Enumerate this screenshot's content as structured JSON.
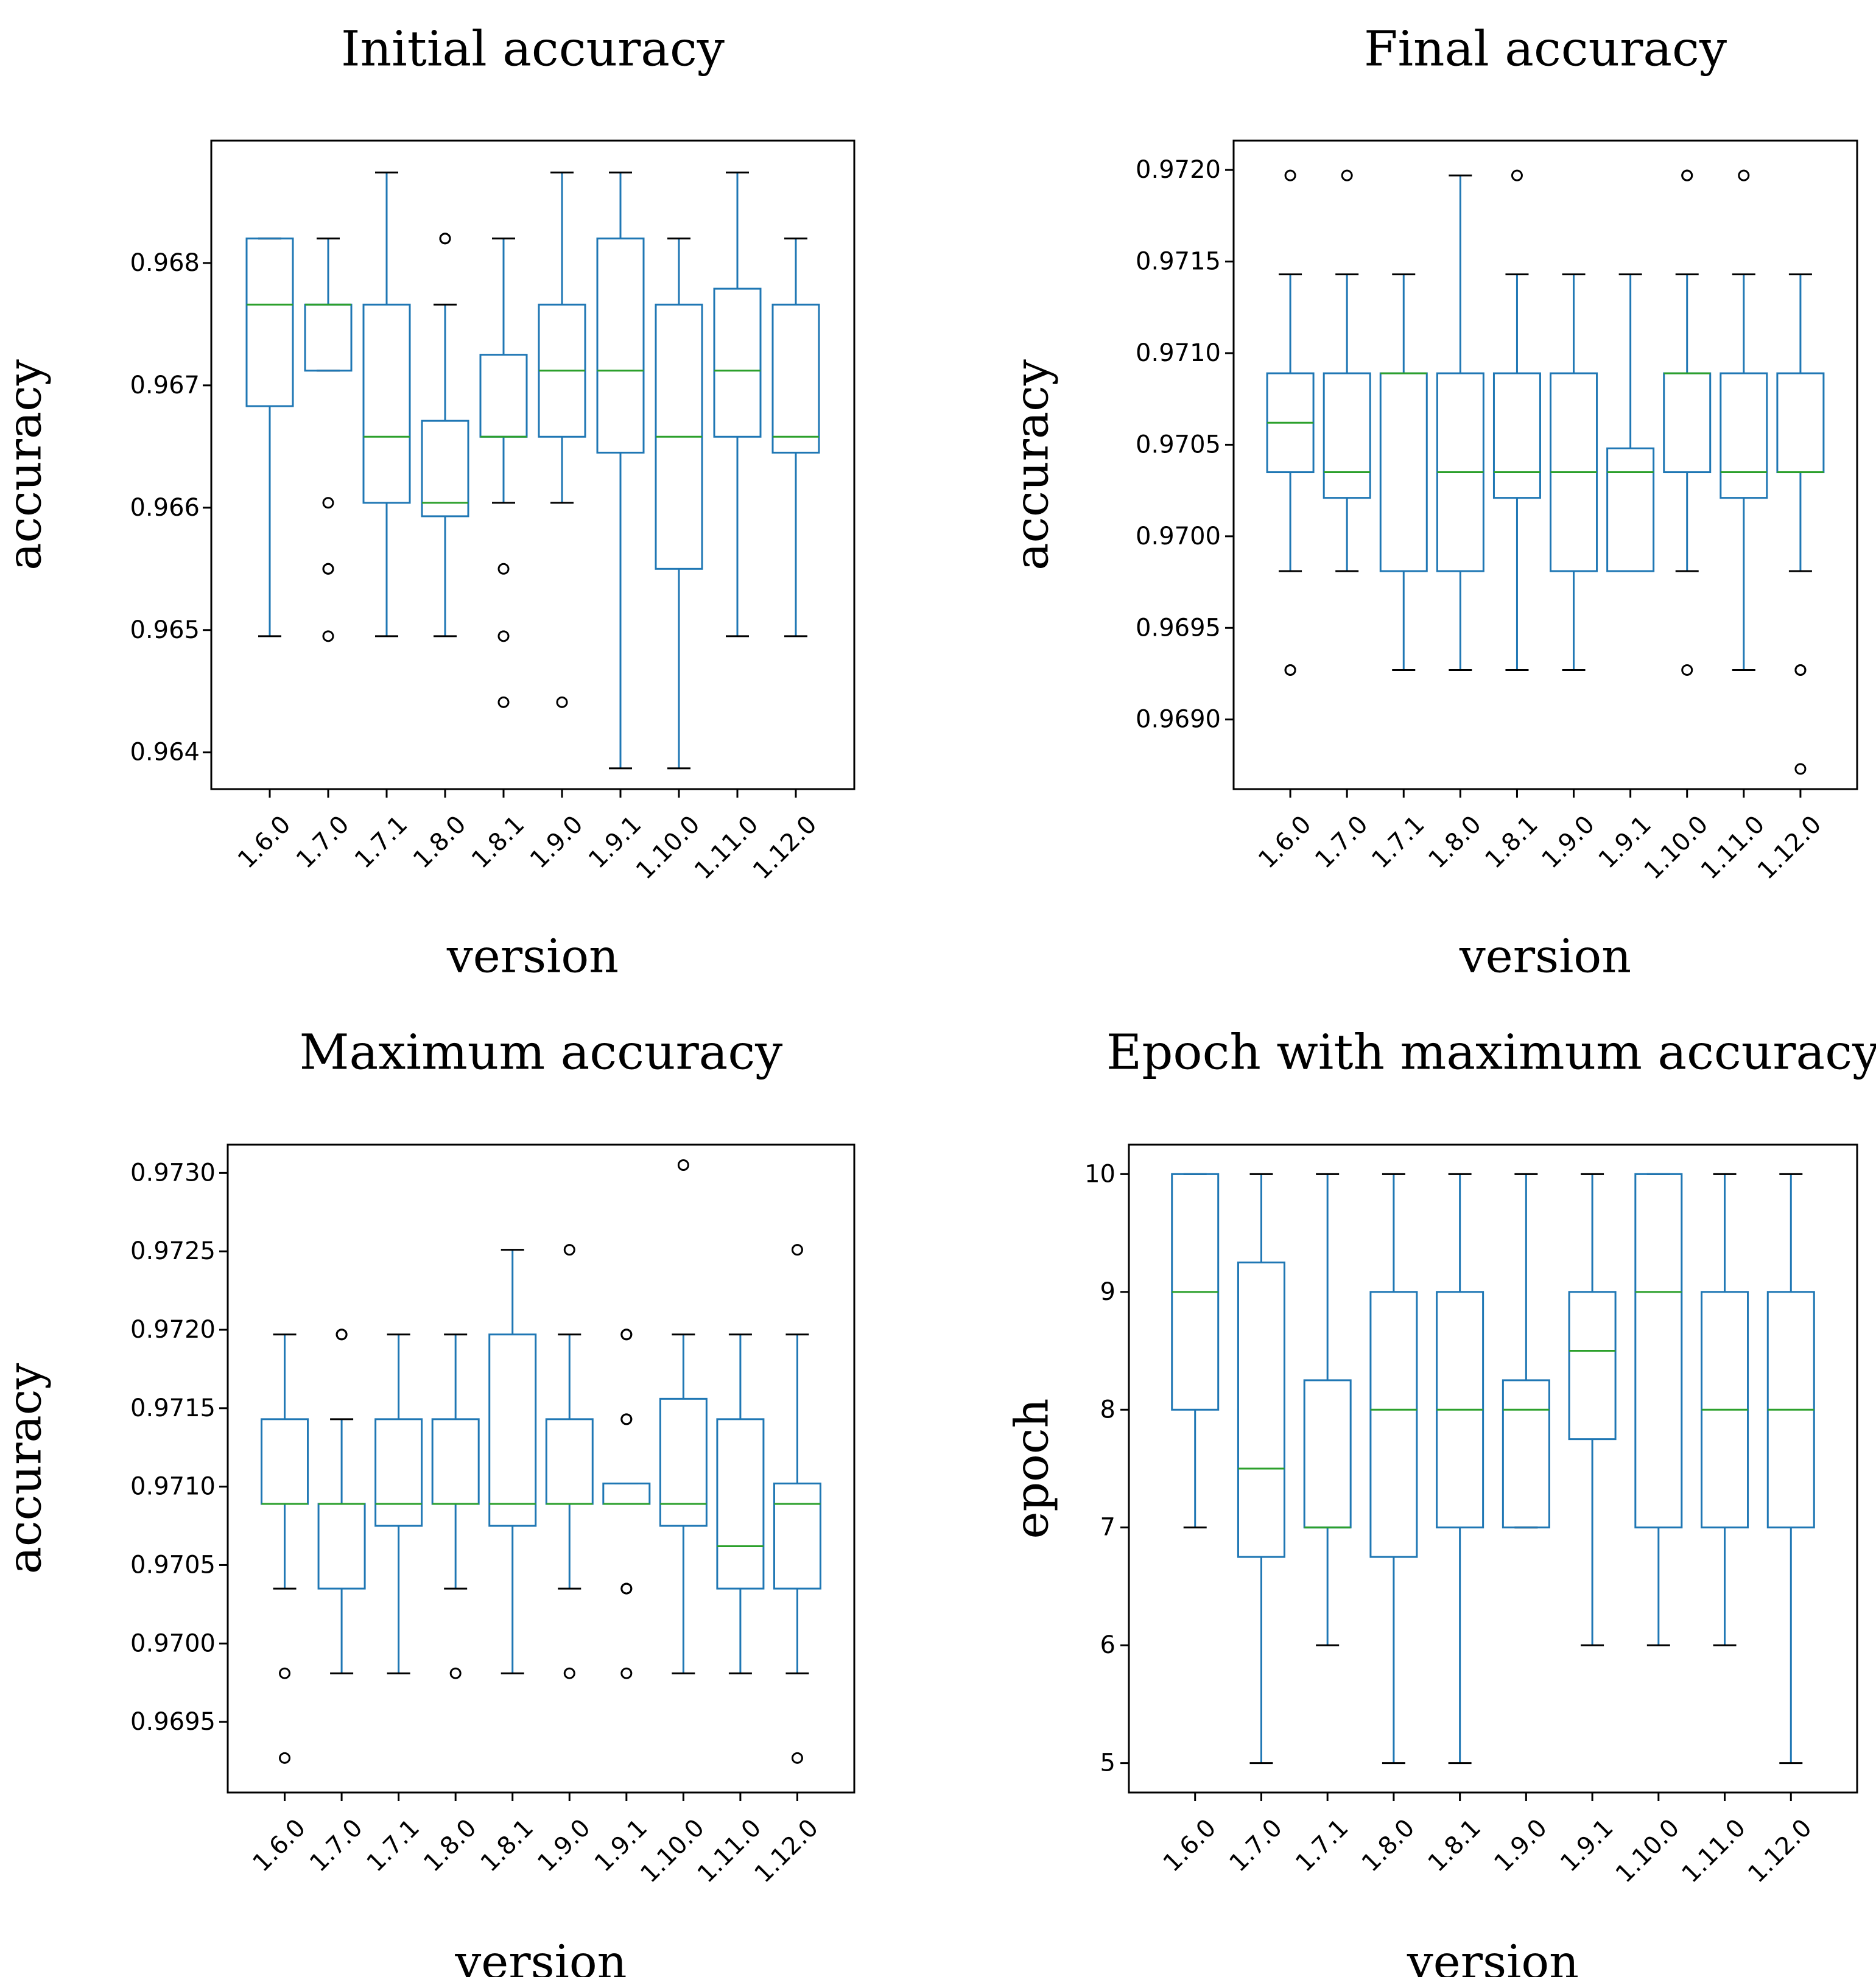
{
  "chart_data": [
    {
      "type": "box",
      "title": "Initial accuracy",
      "xlabel": "version",
      "ylabel": "accuracy",
      "categories": [
        "1.6.0",
        "1.7.0",
        "1.7.1",
        "1.8.0",
        "1.8.1",
        "1.9.0",
        "1.9.1",
        "1.10.0",
        "1.11.0",
        "1.12.0"
      ],
      "ylim": [
        0.9637,
        0.969
      ],
      "yticks": [
        0.964,
        0.965,
        0.966,
        0.967,
        0.968
      ],
      "ytick_labels": [
        "0.964",
        "0.965",
        "0.966",
        "0.967",
        "0.968"
      ],
      "boxes": [
        {
          "whislo": 0.96495,
          "q1": 0.96683,
          "med": 0.96766,
          "q3": 0.9682,
          "whishi": 0.9682,
          "fliers": []
        },
        {
          "whislo": 0.96712,
          "q1": 0.96712,
          "med": 0.96766,
          "q3": 0.96766,
          "whishi": 0.9682,
          "fliers": [
            0.96604,
            0.9655,
            0.9655,
            0.96495
          ]
        },
        {
          "whislo": 0.96495,
          "q1": 0.96604,
          "med": 0.96658,
          "q3": 0.96766,
          "whishi": 0.96874,
          "fliers": []
        },
        {
          "whislo": 0.96495,
          "q1": 0.96593,
          "med": 0.96604,
          "q3": 0.96671,
          "whishi": 0.96766,
          "fliers": [
            0.9682,
            0.9682
          ]
        },
        {
          "whislo": 0.96604,
          "q1": 0.96658,
          "med": 0.96658,
          "q3": 0.96725,
          "whishi": 0.9682,
          "fliers": [
            0.9655,
            0.96495,
            0.96441
          ]
        },
        {
          "whislo": 0.96604,
          "q1": 0.96658,
          "med": 0.96712,
          "q3": 0.96766,
          "whishi": 0.96874,
          "fliers": [
            0.96441
          ]
        },
        {
          "whislo": 0.96387,
          "q1": 0.96645,
          "med": 0.96712,
          "q3": 0.9682,
          "whishi": 0.96874,
          "fliers": []
        },
        {
          "whislo": 0.96387,
          "q1": 0.9655,
          "med": 0.96658,
          "q3": 0.96766,
          "whishi": 0.9682,
          "fliers": []
        },
        {
          "whislo": 0.96495,
          "q1": 0.96658,
          "med": 0.96712,
          "q3": 0.96779,
          "whishi": 0.96874,
          "fliers": []
        },
        {
          "whislo": 0.96495,
          "q1": 0.96645,
          "med": 0.96658,
          "q3": 0.96766,
          "whishi": 0.9682,
          "fliers": []
        }
      ]
    },
    {
      "type": "box",
      "title": "Final accuracy",
      "xlabel": "version",
      "ylabel": "accuracy",
      "categories": [
        "1.6.0",
        "1.7.0",
        "1.7.1",
        "1.8.0",
        "1.8.1",
        "1.9.0",
        "1.9.1",
        "1.10.0",
        "1.11.0",
        "1.12.0"
      ],
      "ylim": [
        0.96862,
        0.97216
      ],
      "yticks": [
        0.969,
        0.9695,
        0.97,
        0.9705,
        0.971,
        0.9715,
        0.972
      ],
      "ytick_labels": [
        "0.9690",
        "0.9695",
        "0.9700",
        "0.9705",
        "0.9710",
        "0.9715",
        "0.9720"
      ],
      "boxes": [
        {
          "whislo": 0.96981,
          "q1": 0.97035,
          "med": 0.97062,
          "q3": 0.97089,
          "whishi": 0.97143,
          "fliers": [
            0.97197,
            0.96927,
            0.96927
          ]
        },
        {
          "whislo": 0.96981,
          "q1": 0.97021,
          "med": 0.97035,
          "q3": 0.97089,
          "whishi": 0.97143,
          "fliers": [
            0.97197
          ]
        },
        {
          "whislo": 0.96927,
          "q1": 0.96981,
          "med": 0.97089,
          "q3": 0.97089,
          "whishi": 0.97143,
          "fliers": []
        },
        {
          "whislo": 0.96927,
          "q1": 0.96981,
          "med": 0.97035,
          "q3": 0.97089,
          "whishi": 0.97197,
          "fliers": []
        },
        {
          "whislo": 0.96927,
          "q1": 0.97021,
          "med": 0.97035,
          "q3": 0.97089,
          "whishi": 0.97143,
          "fliers": [
            0.97197
          ]
        },
        {
          "whislo": 0.96927,
          "q1": 0.96981,
          "med": 0.97035,
          "q3": 0.97089,
          "whishi": 0.97143,
          "fliers": []
        },
        {
          "whislo": 0.96981,
          "q1": 0.96981,
          "med": 0.97035,
          "q3": 0.97048,
          "whishi": 0.97143,
          "fliers": []
        },
        {
          "whislo": 0.96981,
          "q1": 0.97035,
          "med": 0.97089,
          "q3": 0.97089,
          "whishi": 0.97143,
          "fliers": [
            0.97197,
            0.97197,
            0.96927
          ]
        },
        {
          "whislo": 0.96927,
          "q1": 0.97021,
          "med": 0.97035,
          "q3": 0.97089,
          "whishi": 0.97143,
          "fliers": [
            0.97197
          ]
        },
        {
          "whislo": 0.96981,
          "q1": 0.97035,
          "med": 0.97035,
          "q3": 0.97089,
          "whishi": 0.97143,
          "fliers": [
            0.96927,
            0.96927,
            0.96873
          ]
        }
      ]
    },
    {
      "type": "box",
      "title": "Maximum accuracy",
      "xlabel": "version",
      "ylabel": "accuracy",
      "categories": [
        "1.6.0",
        "1.7.0",
        "1.7.1",
        "1.8.0",
        "1.8.1",
        "1.9.0",
        "1.9.1",
        "1.10.0",
        "1.11.0",
        "1.12.0"
      ],
      "ylim": [
        0.96905,
        0.97318
      ],
      "yticks": [
        0.9695,
        0.97,
        0.9705,
        0.971,
        0.9715,
        0.972,
        0.9725,
        0.973
      ],
      "ytick_labels": [
        "0.9695",
        "0.9700",
        "0.9705",
        "0.9710",
        "0.9715",
        "0.9720",
        "0.9725",
        "0.9730"
      ],
      "boxes": [
        {
          "whislo": 0.97035,
          "q1": 0.97089,
          "med": 0.97089,
          "q3": 0.97143,
          "whishi": 0.97197,
          "fliers": [
            0.96981,
            0.96927
          ]
        },
        {
          "whislo": 0.96981,
          "q1": 0.97035,
          "med": 0.97089,
          "q3": 0.97089,
          "whishi": 0.97143,
          "fliers": [
            0.97197,
            0.97197
          ]
        },
        {
          "whislo": 0.96981,
          "q1": 0.97075,
          "med": 0.97089,
          "q3": 0.97143,
          "whishi": 0.97197,
          "fliers": []
        },
        {
          "whislo": 0.97035,
          "q1": 0.97089,
          "med": 0.97089,
          "q3": 0.97143,
          "whishi": 0.97197,
          "fliers": [
            0.96981
          ]
        },
        {
          "whislo": 0.96981,
          "q1": 0.97075,
          "med": 0.97089,
          "q3": 0.97197,
          "whishi": 0.97251,
          "fliers": []
        },
        {
          "whislo": 0.97035,
          "q1": 0.97089,
          "med": 0.97089,
          "q3": 0.97143,
          "whishi": 0.97197,
          "fliers": [
            0.97251,
            0.96981
          ]
        },
        {
          "whislo": 0.97089,
          "q1": 0.97089,
          "med": 0.97089,
          "q3": 0.97102,
          "whishi": 0.97102,
          "fliers": [
            0.97197,
            0.97197,
            0.97143,
            0.97143,
            0.97035,
            0.97035,
            0.96981
          ]
        },
        {
          "whislo": 0.96981,
          "q1": 0.97075,
          "med": 0.97089,
          "q3": 0.97156,
          "whishi": 0.97197,
          "fliers": [
            0.97305
          ]
        },
        {
          "whislo": 0.96981,
          "q1": 0.97035,
          "med": 0.97062,
          "q3": 0.97143,
          "whishi": 0.97197,
          "fliers": []
        },
        {
          "whislo": 0.96981,
          "q1": 0.97035,
          "med": 0.97089,
          "q3": 0.97102,
          "whishi": 0.97197,
          "fliers": [
            0.97251,
            0.96927
          ]
        }
      ]
    },
    {
      "type": "box",
      "title": "Epoch with maximum accuracy",
      "xlabel": "version",
      "ylabel": "epoch",
      "categories": [
        "1.6.0",
        "1.7.0",
        "1.7.1",
        "1.8.0",
        "1.8.1",
        "1.9.0",
        "1.9.1",
        "1.10.0",
        "1.11.0",
        "1.12.0"
      ],
      "ylim": [
        4.75,
        10.25
      ],
      "yticks": [
        5,
        6,
        7,
        8,
        9,
        10
      ],
      "ytick_labels": [
        "5",
        "6",
        "7",
        "8",
        "9",
        "10"
      ],
      "boxes": [
        {
          "whislo": 7,
          "q1": 8,
          "med": 9,
          "q3": 10,
          "whishi": 10,
          "fliers": []
        },
        {
          "whislo": 5,
          "q1": 6.75,
          "med": 7.5,
          "q3": 9.25,
          "whishi": 10,
          "fliers": []
        },
        {
          "whislo": 6,
          "q1": 7,
          "med": 7,
          "q3": 8.25,
          "whishi": 10,
          "fliers": []
        },
        {
          "whislo": 5,
          "q1": 6.75,
          "med": 8,
          "q3": 9,
          "whishi": 10,
          "fliers": []
        },
        {
          "whislo": 5,
          "q1": 7,
          "med": 8,
          "q3": 9,
          "whishi": 10,
          "fliers": []
        },
        {
          "whislo": 7,
          "q1": 7,
          "med": 8,
          "q3": 8.25,
          "whishi": 10,
          "fliers": []
        },
        {
          "whislo": 6,
          "q1": 7.75,
          "med": 8.5,
          "q3": 9,
          "whishi": 10,
          "fliers": []
        },
        {
          "whislo": 6,
          "q1": 7,
          "med": 9,
          "q3": 10,
          "whishi": 10,
          "fliers": []
        },
        {
          "whislo": 6,
          "q1": 7,
          "med": 8,
          "q3": 9,
          "whishi": 10,
          "fliers": []
        },
        {
          "whislo": 5,
          "q1": 7,
          "med": 8,
          "q3": 9,
          "whishi": 10,
          "fliers": []
        }
      ]
    }
  ],
  "colors": {
    "box": "#1f77b4",
    "median": "#2ca02c",
    "cap": "#000000",
    "flier": "#000000"
  }
}
